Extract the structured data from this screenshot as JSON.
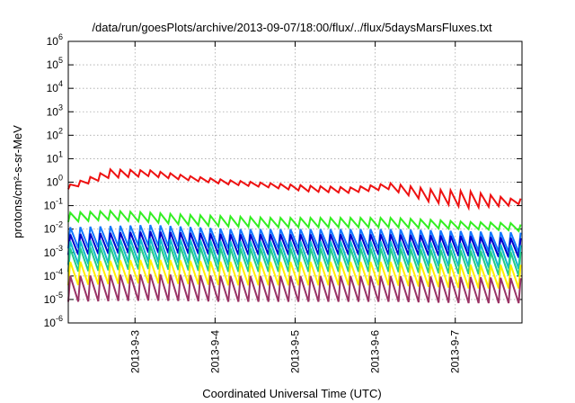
{
  "chart_data": {
    "type": "line",
    "title": "/data/run/goesPlots/archive/2013-09-07/18:00/flux/../flux/5daysMarsFluxes.txt",
    "xlabel": "Coordinated Universal Time (UTC)",
    "ylabel": "protons/cm²-s-sr-MeV",
    "yscale": "log",
    "ylim": [
      "1e-6",
      "1e6"
    ],
    "xlim": [
      "2013-09-02 04:00",
      "2013-09-07 20:00"
    ],
    "grid": true,
    "legend": "none",
    "x_ticks": [
      {
        "value": "2013-09-03",
        "label": "2013-9-3"
      },
      {
        "value": "2013-09-04",
        "label": "2013-9-4"
      },
      {
        "value": "2013-09-05",
        "label": "2013-9-5"
      },
      {
        "value": "2013-09-06",
        "label": "2013-9-6"
      },
      {
        "value": "2013-09-07",
        "label": "2013-9-7"
      }
    ],
    "y_ticks": [
      {
        "base": "10",
        "exp": "-6"
      },
      {
        "base": "10",
        "exp": "-5"
      },
      {
        "base": "10",
        "exp": "-4"
      },
      {
        "base": "10",
        "exp": "-3"
      },
      {
        "base": "10",
        "exp": "-2"
      },
      {
        "base": "10",
        "exp": "-1"
      },
      {
        "base": "10",
        "exp": "0"
      },
      {
        "base": "10",
        "exp": "1"
      },
      {
        "base": "10",
        "exp": "2"
      },
      {
        "base": "10",
        "exp": "3"
      },
      {
        "base": "10",
        "exp": "4"
      },
      {
        "base": "10",
        "exp": "5"
      },
      {
        "base": "10",
        "exp": "6"
      }
    ],
    "sawtooth_period_hours": 3,
    "series": [
      {
        "color": "#ee1111",
        "x": [
          "2013-09-02 04:00",
          "2013-09-02 16:00",
          "2013-09-03 04:00",
          "2013-09-03 16:00",
          "2013-09-04 04:00",
          "2013-09-04 16:00",
          "2013-09-05 04:00",
          "2013-09-05 16:00",
          "2013-09-06 04:00",
          "2013-09-06 16:00",
          "2013-09-07 04:00",
          "2013-09-07 16:00",
          "2013-09-07 20:00"
        ],
        "peak": [
          0.8,
          3.5,
          3.2,
          1.8,
          1.2,
          0.9,
          0.7,
          0.6,
          0.9,
          0.5,
          0.4,
          0.2,
          0.2
        ],
        "trough": [
          0.5,
          1.5,
          1.8,
          1.2,
          0.8,
          0.6,
          0.4,
          0.35,
          0.5,
          0.15,
          0.08,
          0.1,
          0.12
        ]
      },
      {
        "color": "#33ee22",
        "x": [
          "2013-09-02 04:00",
          "2013-09-02 16:00",
          "2013-09-03 04:00",
          "2013-09-03 16:00",
          "2013-09-04 04:00",
          "2013-09-04 16:00",
          "2013-09-05 04:00",
          "2013-09-05 16:00",
          "2013-09-06 04:00",
          "2013-09-06 16:00",
          "2013-09-07 04:00",
          "2013-09-07 16:00",
          "2013-09-07 20:00"
        ],
        "peak": [
          0.05,
          0.06,
          0.05,
          0.04,
          0.035,
          0.03,
          0.03,
          0.03,
          0.03,
          0.025,
          0.02,
          0.018,
          0.015
        ],
        "trough": [
          0.02,
          0.025,
          0.02,
          0.015,
          0.013,
          0.012,
          0.012,
          0.012,
          0.012,
          0.011,
          0.01,
          0.009,
          0.008
        ]
      },
      {
        "color": "#1177ff",
        "x": [
          "2013-09-02 04:00",
          "2013-09-03 04:00",
          "2013-09-04 04:00",
          "2013-09-05 04:00",
          "2013-09-06 04:00",
          "2013-09-07 04:00",
          "2013-09-07 20:00"
        ],
        "peak": [
          0.012,
          0.015,
          0.01,
          0.01,
          0.01,
          0.008,
          0.007
        ],
        "trough": [
          0.0015,
          0.002,
          0.0015,
          0.0015,
          0.0015,
          0.0012,
          0.001
        ]
      },
      {
        "color": "#0000cc",
        "x": [
          "2013-09-02 04:00",
          "2013-09-03 04:00",
          "2013-09-04 04:00",
          "2013-09-05 04:00",
          "2013-09-06 04:00",
          "2013-09-07 04:00",
          "2013-09-07 20:00"
        ],
        "peak": [
          0.006,
          0.008,
          0.006,
          0.006,
          0.006,
          0.005,
          0.004
        ],
        "trough": [
          0.0008,
          0.001,
          0.0008,
          0.0008,
          0.0008,
          0.0007,
          0.0006
        ]
      },
      {
        "color": "#11bbcc",
        "x": [
          "2013-09-02 04:00",
          "2013-09-03 04:00",
          "2013-09-04 04:00",
          "2013-09-05 04:00",
          "2013-09-06 04:00",
          "2013-09-07 04:00",
          "2013-09-07 20:00"
        ],
        "peak": [
          0.003,
          0.004,
          0.003,
          0.003,
          0.003,
          0.0025,
          0.002
        ],
        "trough": [
          0.0003,
          0.0004,
          0.0003,
          0.0003,
          0.0003,
          0.00025,
          0.0002
        ]
      },
      {
        "color": "#22cc88",
        "x": [
          "2013-09-02 04:00",
          "2013-09-03 04:00",
          "2013-09-04 04:00",
          "2013-09-05 04:00",
          "2013-09-06 04:00",
          "2013-09-07 04:00",
          "2013-09-07 20:00"
        ],
        "peak": [
          0.0015,
          0.002,
          0.0015,
          0.0015,
          0.0015,
          0.0012,
          0.001
        ],
        "trough": [
          0.00015,
          0.0002,
          0.00015,
          0.00015,
          0.00015,
          0.00012,
          0.0001
        ]
      },
      {
        "color": "#ffee00",
        "x": [
          "2013-09-02 04:00",
          "2013-09-03 04:00",
          "2013-09-04 04:00",
          "2013-09-05 04:00",
          "2013-09-06 04:00",
          "2013-09-07 04:00",
          "2013-09-07 20:00"
        ],
        "peak": [
          0.0004,
          0.0005,
          0.0004,
          0.0004,
          0.0004,
          0.0003,
          0.0003
        ],
        "trough": [
          4e-05,
          5e-05,
          4e-05,
          4e-05,
          4e-05,
          3e-05,
          3e-05
        ]
      },
      {
        "color": "#993366",
        "x": [
          "2013-09-02 04:00",
          "2013-09-03 04:00",
          "2013-09-04 04:00",
          "2013-09-05 04:00",
          "2013-09-06 04:00",
          "2013-09-07 04:00",
          "2013-09-07 20:00"
        ],
        "peak": [
          0.0001,
          0.00012,
          0.0001,
          0.0001,
          0.0001,
          9e-05,
          8e-05
        ],
        "trough": [
          8e-06,
          9e-06,
          8e-06,
          8e-06,
          8e-06,
          7e-06,
          7e-06
        ]
      }
    ]
  }
}
